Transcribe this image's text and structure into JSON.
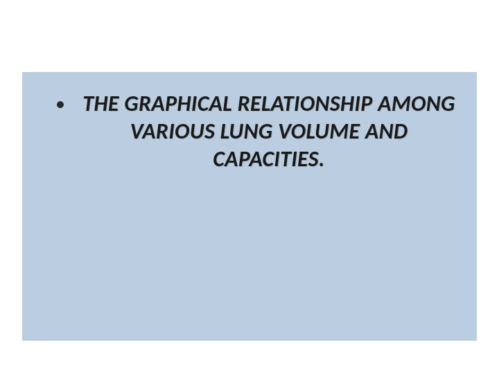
{
  "slide": {
    "background_color": "#bbcde1",
    "page_background": "#ffffff",
    "bullet_char": "•",
    "heading_text": "THE GRAPHICAL RELATIONSHIP AMONG VARIOUS LUNG VOLUME AND CAPACITIES.",
    "heading_fontsize": 32,
    "heading_color": "#1a1a1a",
    "heading_weight": 700,
    "heading_style": "italic",
    "bullet_color": "#262626",
    "bullet_fontsize": 28,
    "font_family": "Calibri"
  }
}
